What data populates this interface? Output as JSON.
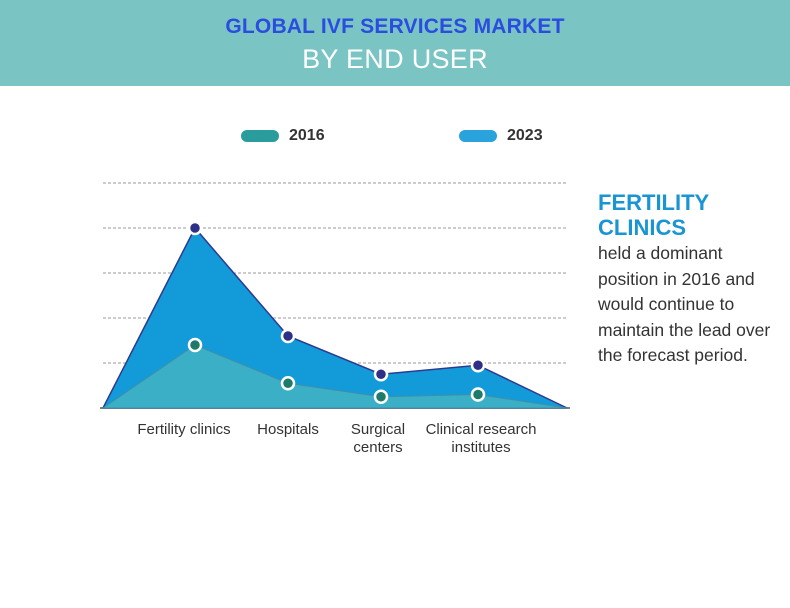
{
  "header": {
    "title": "GLOBAL IVF SERVICES MARKET",
    "subtitle": "BY END USER"
  },
  "legend": [
    {
      "label": "2016",
      "color": "#2a9c9e"
    },
    {
      "label": "2023",
      "color": "#2aa3dd"
    }
  ],
  "chart_data": {
    "type": "area",
    "categories": [
      "Fertility clinics",
      "Hospitals",
      "Surgical centers",
      "Clinical research institutes"
    ],
    "series": [
      {
        "name": "2016",
        "values": [
          1.4,
          0.55,
          0.25,
          0.3
        ],
        "fill": "#3bafc6",
        "marker": "#1f7a6c"
      },
      {
        "name": "2023",
        "values": [
          4.0,
          1.6,
          0.75,
          0.95
        ],
        "fill": "#139ad9",
        "marker": "#2e2f86"
      }
    ],
    "ylim": [
      0,
      5
    ],
    "grid": true,
    "legend_position": "top"
  },
  "sidebar": {
    "heading": "FERTILITY CLINICS",
    "text": "held a dominant position in 2016 and would continue to maintain the lead over the forecast period."
  }
}
